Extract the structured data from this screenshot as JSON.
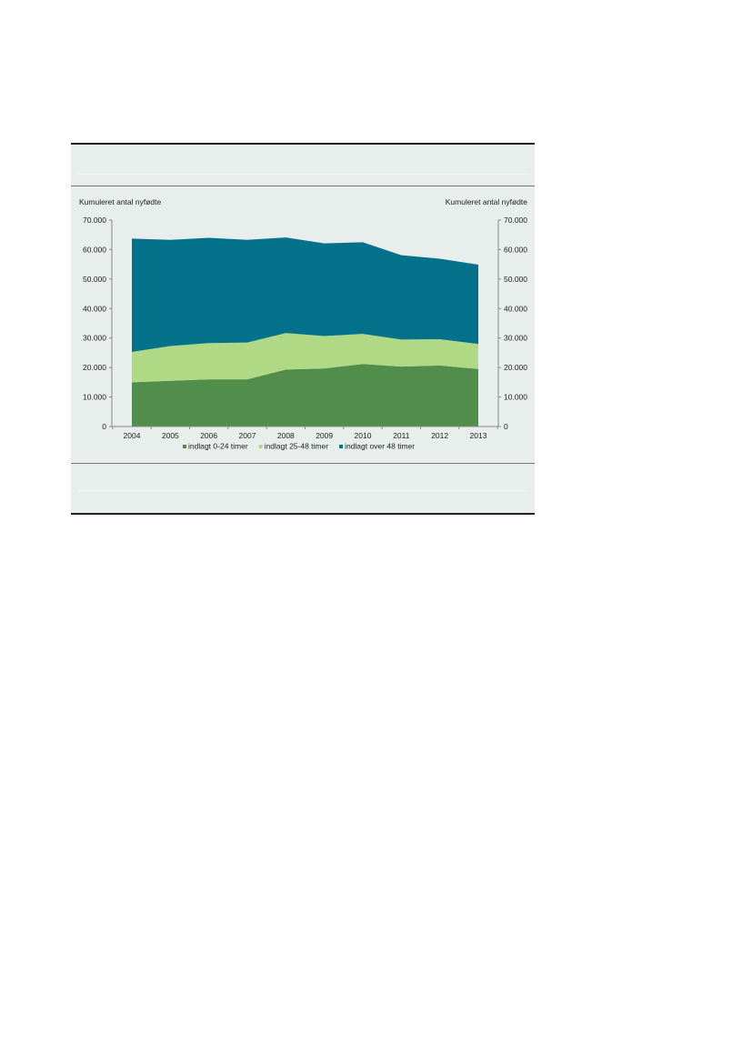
{
  "chart_data": {
    "type": "area",
    "stacked": true,
    "ylabel_left": "Kumuleret antal nyfødte",
    "ylabel_right": "Kumuleret antal nyfødte",
    "categories": [
      "2004",
      "2005",
      "2006",
      "2007",
      "2008",
      "2009",
      "2010",
      "2011",
      "2012",
      "2013"
    ],
    "ylim": [
      0,
      70000
    ],
    "yticks": [
      "0",
      "10.000",
      "20.000",
      "30.000",
      "40.000",
      "50.000",
      "60.000",
      "70.000"
    ],
    "series": [
      {
        "name": "indlagt 0-24 timer",
        "color": "#518e4c",
        "values": [
          15000,
          15500,
          16000,
          16000,
          19300,
          19700,
          21200,
          20300,
          20700,
          19500
        ]
      },
      {
        "name": "indlagt 25-48 timer",
        "color": "#afd985",
        "values": [
          10300,
          11800,
          12300,
          12500,
          12400,
          11000,
          10200,
          9200,
          8900,
          8500
        ]
      },
      {
        "name": "indlagt over 48 timer",
        "color": "#04718a",
        "values": [
          38400,
          36000,
          35700,
          34800,
          32400,
          31400,
          31100,
          28600,
          27300,
          26900
        ]
      }
    ],
    "legend": "bottom"
  }
}
